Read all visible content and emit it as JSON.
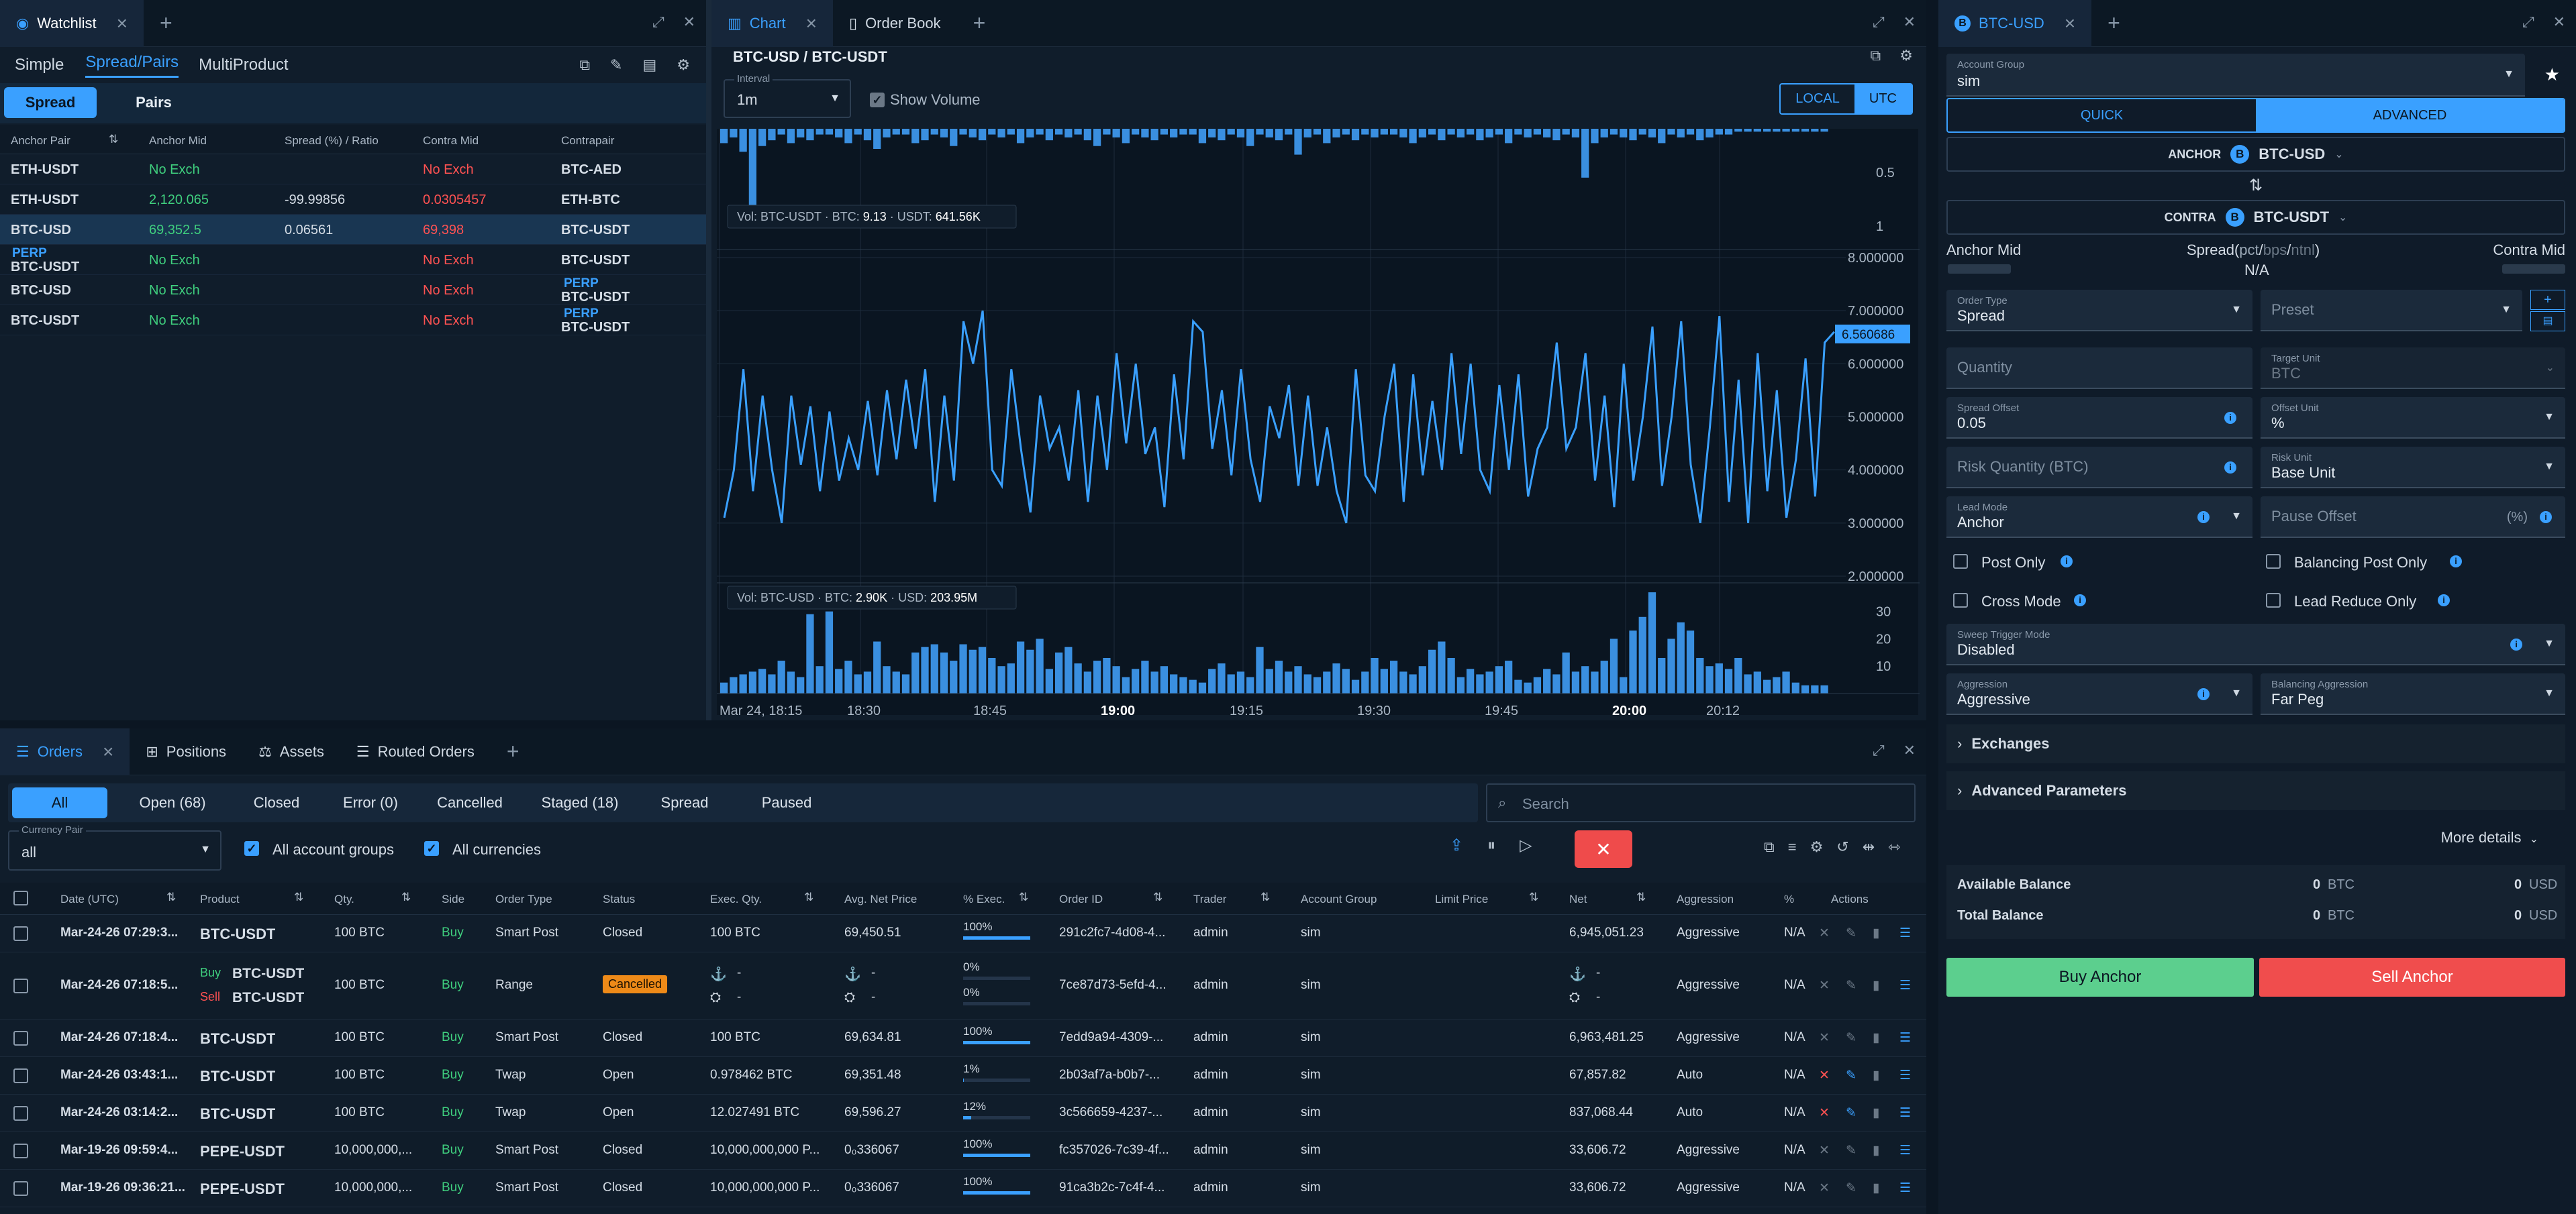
{
  "watchlist": {
    "tab_title": "Watchlist",
    "modes": [
      "Simple",
      "Spread/Pairs",
      "MultiProduct"
    ],
    "sub_tabs": [
      "Spread",
      "Pairs"
    ],
    "columns": [
      "Anchor Pair",
      "Anchor Mid",
      "Spread (%) / Ratio",
      "Contra Mid",
      "Contrapair"
    ],
    "rows": [
      {
        "anchor_tag": "",
        "anchor": "ETH-USDT",
        "anchor_mid": "No Exch",
        "spread": "",
        "contra_mid": "No Exch",
        "contra_tag": "",
        "contra": "BTC-AED"
      },
      {
        "anchor_tag": "",
        "anchor": "ETH-USDT",
        "anchor_mid": "2,120.065",
        "spread": "-99.99856",
        "contra_mid": "0.0305457",
        "contra_tag": "",
        "contra": "ETH-BTC"
      },
      {
        "anchor_tag": "",
        "anchor": "BTC-USD",
        "anchor_mid": "69,352.5",
        "spread": "0.06561",
        "contra_mid": "69,398",
        "contra_tag": "",
        "contra": "BTC-USDT"
      },
      {
        "anchor_tag": "PERP",
        "anchor": "BTC-USDT",
        "anchor_mid": "No Exch",
        "spread": "",
        "contra_mid": "No Exch",
        "contra_tag": "",
        "contra": "BTC-USDT"
      },
      {
        "anchor_tag": "",
        "anchor": "BTC-USD",
        "anchor_mid": "No Exch",
        "spread": "",
        "contra_mid": "No Exch",
        "contra_tag": "PERP",
        "contra": "BTC-USDT"
      },
      {
        "anchor_tag": "",
        "anchor": "BTC-USDT",
        "anchor_mid": "No Exch",
        "spread": "",
        "contra_mid": "No Exch",
        "contra_tag": "PERP",
        "contra": "BTC-USDT"
      }
    ]
  },
  "chart_panel": {
    "tabs": [
      "Chart",
      "Order Book"
    ],
    "title": "BTC-USD / BTC-USDT",
    "interval_label": "Interval",
    "interval_value": "1m",
    "show_volume": "Show Volume",
    "tz_local": "LOCAL",
    "tz_utc": "UTC",
    "vol_top": {
      "prefix": "Vol: BTC-USDT",
      "a_label": "BTC:",
      "a_val": "9.13",
      "b_label": "USDT:",
      "b_val": "641.56K"
    },
    "vol_bottom": {
      "prefix": "Vol: BTC-USD",
      "a_label": "BTC:",
      "a_val": "2.90K",
      "b_label": "USD:",
      "b_val": "203.95M"
    },
    "top_axis": [
      "0.5",
      "1"
    ],
    "price_axis": [
      "8.000000",
      "7.000000",
      "6.000000",
      "5.000000",
      "4.000000",
      "3.000000",
      "2.000000"
    ],
    "vol_axis": [
      "30",
      "20",
      "10"
    ],
    "current_value": "6.560686",
    "time_axis": [
      "Mar 24, 18:15",
      "18:30",
      "18:45",
      "19:00",
      "19:15",
      "19:30",
      "19:45",
      "20:00",
      "20:12"
    ]
  },
  "chart_data": {
    "type": "line",
    "ylabel": "",
    "ylim": [
      2,
      8
    ],
    "spread_series": [
      3.1,
      4.0,
      5.9,
      3.6,
      5.4,
      4.0,
      3.0,
      5.4,
      4.1,
      5.2,
      3.6,
      5.1,
      3.8,
      4.6,
      4.0,
      5.3,
      3.9,
      5.5,
      4.2,
      5.7,
      4.4,
      5.9,
      3.4,
      5.4,
      3.8,
      6.8,
      6.0,
      7.0,
      4.0,
      3.7,
      5.9,
      4.4,
      3.2,
      5.4,
      4.4,
      4.8,
      3.8,
      5.5,
      3.4,
      5.4,
      4.0,
      6.2,
      4.5,
      6.0,
      4.3,
      4.8,
      3.3,
      5.8,
      4.2,
      6.8,
      6.6,
      4.4,
      5.5,
      3.9,
      5.9,
      4.2,
      3.4,
      5.2,
      4.6,
      5.6,
      3.7,
      5.4,
      3.7,
      4.8,
      3.6,
      3.0,
      5.9,
      3.9,
      3.6,
      5.0,
      6.0,
      3.4,
      5.8,
      3.9,
      5.3,
      4.0,
      6.2,
      4.3,
      6.0,
      4.0,
      3.6,
      5.6,
      4.0,
      5.8,
      3.5,
      4.4,
      4.8,
      6.4,
      4.4,
      4.8,
      6.2,
      3.8,
      5.4,
      3.3,
      6.0,
      3.8,
      5.0,
      6.7,
      3.7,
      5.0,
      6.8,
      4.1,
      3.0,
      4.8,
      6.9,
      3.4,
      5.7,
      3.0,
      6.2,
      3.6,
      5.5,
      3.1,
      4.2,
      6.1,
      3.5,
      6.4,
      6.6
    ],
    "volume_usd_series": [
      4,
      6,
      7,
      8,
      9,
      7,
      12,
      8,
      6,
      29,
      10,
      30,
      9,
      12,
      7,
      8,
      19,
      10,
      8,
      7,
      15,
      17,
      18,
      15,
      12,
      18,
      16,
      17,
      13,
      10,
      11,
      19,
      16,
      20,
      9,
      15,
      17,
      11,
      8,
      12,
      13,
      10,
      6,
      9,
      12,
      8,
      10,
      7,
      6,
      5,
      4,
      9,
      11,
      7,
      8,
      6,
      17,
      9,
      12,
      8,
      10,
      7,
      6,
      8,
      11,
      9,
      5,
      8,
      13,
      9,
      12,
      8,
      7,
      10,
      16,
      19,
      13,
      6,
      9,
      7,
      8,
      10,
      12,
      5,
      4,
      6,
      9,
      7,
      15,
      8,
      10,
      8,
      12,
      20,
      6,
      23,
      28,
      37,
      13,
      20,
      26,
      23,
      13,
      10,
      11,
      9,
      13,
      7,
      8,
      5,
      6,
      8,
      4,
      3,
      3,
      3
    ],
    "volume_usdt_series": [
      5,
      3,
      8,
      30,
      6,
      4,
      2,
      5,
      3,
      4,
      2,
      2,
      3,
      5,
      2,
      4,
      7,
      3,
      2,
      2,
      5,
      4,
      2,
      3,
      6,
      2,
      3,
      4,
      2,
      3,
      2,
      5,
      3,
      2,
      4,
      2,
      3,
      2,
      4,
      6,
      2,
      3,
      5,
      2,
      3,
      4,
      2,
      3,
      2,
      2,
      5,
      3,
      4,
      2,
      3,
      6,
      2,
      3,
      4,
      2,
      9,
      3,
      2,
      5,
      3,
      2,
      4,
      2,
      3,
      2,
      2,
      3,
      5,
      3,
      2,
      4,
      2,
      3,
      2,
      4,
      3,
      2,
      5,
      2,
      3,
      2,
      3,
      4,
      2,
      3,
      17,
      5,
      3,
      2,
      3,
      4,
      2,
      3,
      5,
      2,
      3,
      2,
      4,
      3,
      2,
      2,
      1,
      1,
      1,
      1,
      1,
      1,
      1,
      1,
      1,
      1
    ]
  },
  "orders": {
    "tabs": [
      "Orders",
      "Positions",
      "Assets",
      "Routed Orders"
    ],
    "filters": [
      "All",
      "Open (68)",
      "Closed",
      "Error (0)",
      "Cancelled",
      "Staged (18)",
      "Spread",
      "Paused"
    ],
    "search_placeholder": "Search",
    "currency_pair_label": "Currency Pair",
    "currency_pair_value": "all",
    "all_account_groups": "All account groups",
    "all_currencies": "All currencies",
    "columns": [
      "Date (UTC)",
      "Product",
      "Qty.",
      "Side",
      "Order Type",
      "Status",
      "Exec. Qty.",
      "Avg. Net Price",
      "% Exec.",
      "Order ID",
      "Trader",
      "Account Group",
      "Limit Price",
      "Net",
      "Aggression",
      "%",
      "Actions"
    ],
    "rows": [
      {
        "date": "Mar-24-26 07:29:3...",
        "product": "BTC-USDT",
        "qty": "100 BTC",
        "side": "Buy",
        "type": "Smart Post",
        "status": "Closed",
        "exec": "100 BTC",
        "price": "69,450.51",
        "pct": "100%",
        "pct_value": 100,
        "id": "291c2fc7-4d08-4...",
        "trader": "admin",
        "group": "sim",
        "limit": "",
        "net": "6,945,051.23",
        "aggr": "Aggressive",
        "p": "N/A"
      },
      {
        "date": "Mar-24-26 07:18:5...",
        "product_buy": "BTC-USDT",
        "product_sell": "BTC-USDT",
        "buy_label": "Buy",
        "sell_label": "Sell",
        "qty": "100 BTC",
        "side": "Buy",
        "type": "Range",
        "status": "Cancelled",
        "exec": "-",
        "price": "-",
        "pct": "0%",
        "pct_value": 0,
        "id": "7ce87d73-5efd-4...",
        "trader": "admin",
        "group": "sim",
        "limit": "",
        "net": "-",
        "aggr": "Aggressive",
        "p": "N/A"
      },
      {
        "date": "Mar-24-26 07:18:4...",
        "product": "BTC-USDT",
        "qty": "100 BTC",
        "side": "Buy",
        "type": "Smart Post",
        "status": "Closed",
        "exec": "100 BTC",
        "price": "69,634.81",
        "pct": "100%",
        "pct_value": 100,
        "id": "7edd9a94-4309-...",
        "trader": "admin",
        "group": "sim",
        "limit": "",
        "net": "6,963,481.25",
        "aggr": "Aggressive",
        "p": "N/A"
      },
      {
        "date": "Mar-24-26 03:43:1...",
        "product": "BTC-USDT",
        "qty": "100 BTC",
        "side": "Buy",
        "type": "Twap",
        "status": "Open",
        "exec": "0.978462 BTC",
        "price": "69,351.48",
        "pct": "1%",
        "pct_value": 1,
        "id": "2b03af7a-b0b7-...",
        "trader": "admin",
        "group": "sim",
        "limit": "",
        "net": "67,857.82",
        "aggr": "Auto",
        "p": "N/A"
      },
      {
        "date": "Mar-24-26 03:14:2...",
        "product": "BTC-USDT",
        "qty": "100 BTC",
        "side": "Buy",
        "type": "Twap",
        "status": "Open",
        "exec": "12.027491 BTC",
        "price": "69,596.27",
        "pct": "12%",
        "pct_value": 12,
        "id": "3c566659-4237-...",
        "trader": "admin",
        "group": "sim",
        "limit": "",
        "net": "837,068.44",
        "aggr": "Auto",
        "p": "N/A"
      },
      {
        "date": "Mar-19-26 09:59:4...",
        "product": "PEPE-USDT",
        "qty": "10,000,000,...",
        "side": "Buy",
        "type": "Smart Post",
        "status": "Closed",
        "exec": "10,000,000,000 P...",
        "price": "0₀336067",
        "pct": "100%",
        "pct_value": 100,
        "id": "fc357026-7c39-4f...",
        "trader": "admin",
        "group": "sim",
        "limit": "",
        "net": "33,606.72",
        "aggr": "Aggressive",
        "p": "N/A"
      },
      {
        "date": "Mar-19-26 09:36:21...",
        "product": "PEPE-USDT",
        "qty": "10,000,000,...",
        "side": "Buy",
        "type": "Smart Post",
        "status": "Closed",
        "exec": "10,000,000,000 P...",
        "price": "0₀336067",
        "pct": "100%",
        "pct_value": 100,
        "id": "91ca3b2c-7c4f-4...",
        "trader": "admin",
        "group": "sim",
        "limit": "",
        "net": "33,606.72",
        "aggr": "Aggressive",
        "p": "N/A"
      }
    ]
  },
  "ticket": {
    "tab_title": "BTC-USD",
    "account_group_label": "Account Group",
    "account_group_value": "sim",
    "mode_quick": "QUICK",
    "mode_advanced": "ADVANCED",
    "anchor_label": "ANCHOR",
    "anchor_value": "BTC-USD",
    "contra_label": "CONTRA",
    "contra_value": "BTC-USDT",
    "anchor_mid": "Anchor Mid",
    "spread_label_pre": "Spread(",
    "spread_units": [
      "pct",
      "bps",
      "ntnl"
    ],
    "spread_label_post": ")",
    "spread_value": "N/A",
    "contra_mid": "Contra Mid",
    "order_type_label": "Order Type",
    "order_type_value": "Spread",
    "preset_placeholder": "Preset",
    "quantity_placeholder": "Quantity",
    "target_unit_label": "Target Unit",
    "target_unit_value": "BTC",
    "spread_offset_label": "Spread Offset",
    "spread_offset_value": "0.05",
    "offset_unit_label": "Offset Unit",
    "offset_unit_value": "%",
    "risk_qty_placeholder": "Risk Quantity (BTC)",
    "risk_unit_label": "Risk Unit",
    "risk_unit_value": "Base Unit",
    "lead_mode_label": "Lead Mode",
    "lead_mode_value": "Anchor",
    "pause_offset_placeholder": "Pause Offset",
    "pause_offset_unit": "(%)",
    "post_only": "Post Only",
    "balancing_post_only": "Balancing Post Only",
    "cross_mode": "Cross Mode",
    "lead_reduce_only": "Lead Reduce Only",
    "sweep_label": "Sweep Trigger Mode",
    "sweep_value": "Disabled",
    "aggression_label": "Aggression",
    "aggression_value": "Aggressive",
    "bal_aggr_label": "Balancing Aggression",
    "bal_aggr_value": "Far Peg",
    "exchanges": "Exchanges",
    "advanced_params": "Advanced Parameters",
    "more_details": "More details",
    "available_balance": "Available Balance",
    "total_balance": "Total Balance",
    "bal_avail_btc": "0",
    "bal_avail_usd": "0",
    "bal_total_btc": "0",
    "bal_total_usd": "0",
    "btc": "BTC",
    "usd": "USD",
    "buy_anchor": "Buy Anchor",
    "sell_anchor": "Sell Anchor"
  }
}
